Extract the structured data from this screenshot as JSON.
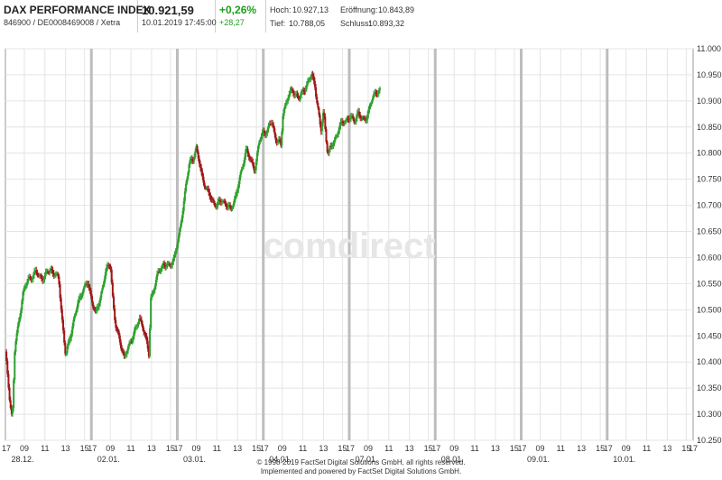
{
  "header": {
    "title": "DAX PERFORMANCE INDEX",
    "ids": "846900 / DE0008469008 / Xetra",
    "price": "10.921,59",
    "timestamp": "10.01.2019 17:45:00",
    "change_pct": "+0,26%",
    "change_abs": "+28,27",
    "high_label": "Hoch:",
    "high": "10.927,13",
    "open_label": "Eröffnung:",
    "open": "10.843,89",
    "low_label": "Tief:",
    "low": "10.788,05",
    "close_label": "Schluss:",
    "close": "10.893,32"
  },
  "watermark": "comdirect",
  "footer": {
    "line1": "© 1998-2019 FactSet Digital Solutions GmbH, all rights reserved.",
    "line2": "Implemented and powered by FactSet Digital Solutions GmbH."
  },
  "colors": {
    "up": "#2ea02e",
    "down": "#a01818",
    "grid": "#e4e4e4",
    "day_sep": "#bdbdbd"
  },
  "chart_data": {
    "type": "candlestick",
    "title": "",
    "ylim": [
      10250,
      11000
    ],
    "y_ticks": [
      "10.250",
      "10.300",
      "10.350",
      "10.400",
      "10.450",
      "10.500",
      "10.550",
      "10.600",
      "10.650",
      "10.700",
      "10.750",
      "10.800",
      "10.850",
      "10.900",
      "10.950",
      "11.000"
    ],
    "y_tick_values": [
      10250,
      10300,
      10350,
      10400,
      10450,
      10500,
      10550,
      10600,
      10650,
      10700,
      10750,
      10800,
      10850,
      10900,
      10950,
      11000
    ],
    "grid": true,
    "days": [
      {
        "date": "28.12.",
        "hour_labels": [
          "17",
          "09",
          "11",
          "13",
          "15"
        ]
      },
      {
        "date": "02.01.",
        "hour_labels": [
          "17",
          "09",
          "11",
          "13",
          "15"
        ]
      },
      {
        "date": "03.01.",
        "hour_labels": [
          "17",
          "09",
          "11",
          "13",
          "15"
        ]
      },
      {
        "date": "04.01.",
        "hour_labels": [
          "17",
          "09",
          "11",
          "13",
          "15"
        ]
      },
      {
        "date": "07.01.",
        "hour_labels": [
          "17",
          "09",
          "11",
          "13",
          "15"
        ]
      },
      {
        "date": "08.01.",
        "hour_labels": [
          "17",
          "09",
          "11",
          "13",
          "15"
        ]
      },
      {
        "date": "09.01.",
        "hour_labels": [
          "17",
          "09",
          "11",
          "13",
          "15"
        ]
      },
      {
        "date": "10.01.",
        "hour_labels": [
          "17",
          "09",
          "11",
          "13",
          "15",
          "17"
        ]
      }
    ],
    "price_path": [
      [
        0,
        10420
      ],
      [
        0.02,
        10380
      ],
      [
        0.05,
        10330
      ],
      [
        0.08,
        10290
      ],
      [
        0.11,
        10430
      ],
      [
        0.15,
        10470
      ],
      [
        0.2,
        10530
      ],
      [
        0.27,
        10560
      ],
      [
        0.35,
        10570
      ],
      [
        0.45,
        10560
      ],
      [
        0.52,
        10580
      ],
      [
        0.58,
        10565
      ],
      [
        0.62,
        10560
      ],
      [
        0.66,
        10480
      ],
      [
        0.7,
        10410
      ],
      [
        0.78,
        10470
      ],
      [
        0.84,
        10510
      ],
      [
        0.9,
        10540
      ],
      [
        0.96,
        10550
      ],
      [
        1.02,
        10510
      ],
      [
        1.05,
        10490
      ],
      [
        1.1,
        10520
      ],
      [
        1.16,
        10570
      ],
      [
        1.22,
        10590
      ],
      [
        1.25,
        10520
      ],
      [
        1.28,
        10470
      ],
      [
        1.33,
        10440
      ],
      [
        1.38,
        10410
      ],
      [
        1.44,
        10430
      ],
      [
        1.5,
        10460
      ],
      [
        1.56,
        10480
      ],
      [
        1.6,
        10470
      ],
      [
        1.64,
        10440
      ],
      [
        1.67,
        10410
      ],
      [
        1.69,
        10520
      ],
      [
        1.72,
        10540
      ],
      [
        1.78,
        10570
      ],
      [
        1.84,
        10590
      ],
      [
        1.9,
        10580
      ],
      [
        1.96,
        10600
      ],
      [
        2.02,
        10640
      ],
      [
        2.06,
        10690
      ],
      [
        2.1,
        10740
      ],
      [
        2.14,
        10780
      ],
      [
        2.18,
        10790
      ],
      [
        2.22,
        10810
      ],
      [
        2.28,
        10760
      ],
      [
        2.34,
        10730
      ],
      [
        2.4,
        10710
      ],
      [
        2.46,
        10700
      ],
      [
        2.52,
        10710
      ],
      [
        2.58,
        10700
      ],
      [
        2.62,
        10690
      ],
      [
        2.68,
        10720
      ],
      [
        2.74,
        10760
      ],
      [
        2.8,
        10810
      ],
      [
        2.86,
        10780
      ],
      [
        2.9,
        10770
      ],
      [
        2.95,
        10820
      ],
      [
        3.0,
        10840
      ],
      [
        3.05,
        10845
      ],
      [
        3.1,
        10860
      ],
      [
        3.14,
        10830
      ],
      [
        3.19,
        10820
      ],
      [
        3.2,
        10800
      ],
      [
        3.23,
        10880
      ],
      [
        3.29,
        10910
      ],
      [
        3.34,
        10920
      ],
      [
        3.42,
        10905
      ],
      [
        3.5,
        10930
      ],
      [
        3.56,
        10950
      ],
      [
        3.6,
        10930
      ],
      [
        3.64,
        10880
      ],
      [
        3.67,
        10840
      ],
      [
        3.7,
        10880
      ],
      [
        3.73,
        10830
      ],
      [
        3.75,
        10800
      ],
      [
        3.82,
        10820
      ],
      [
        3.88,
        10850
      ],
      [
        3.94,
        10860
      ],
      [
        4.0,
        10870
      ],
      [
        4.06,
        10860
      ],
      [
        4.1,
        10880
      ],
      [
        4.16,
        10860
      ],
      [
        4.2,
        10870
      ],
      [
        4.26,
        10900
      ],
      [
        4.32,
        10920
      ],
      [
        4.36,
        10921
      ]
    ]
  }
}
